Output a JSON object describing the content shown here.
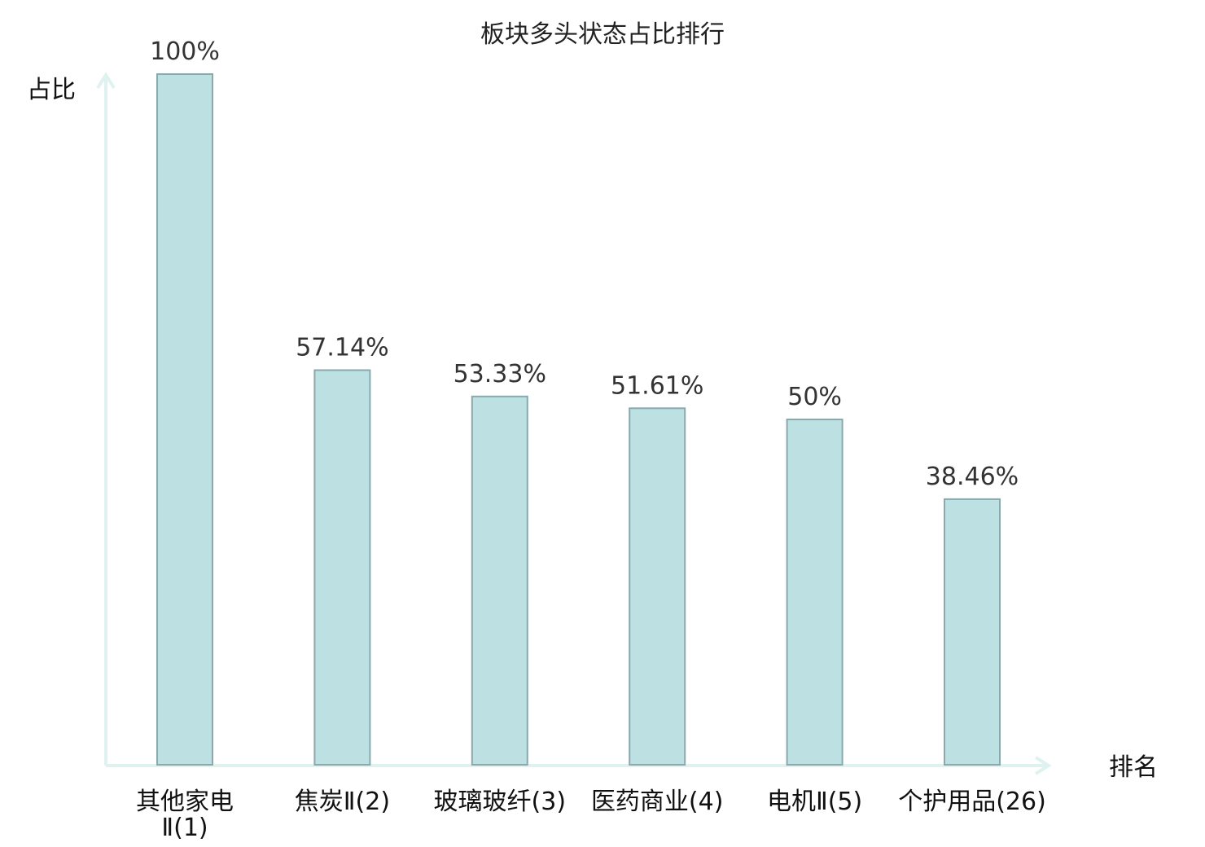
{
  "chart_data": {
    "type": "bar",
    "title": "板块多头状态占比排行",
    "xlabel": "排名",
    "ylabel": "占比",
    "ylim": [
      0,
      100
    ],
    "grid": false,
    "categories": [
      [
        "其他家电",
        "Ⅱ(1)"
      ],
      [
        "焦炭Ⅱ(2)"
      ],
      [
        "玻璃玻纤(3)"
      ],
      [
        "医药商业(4)"
      ],
      [
        "电机Ⅱ(5)"
      ],
      [
        "个护用品(26)"
      ]
    ],
    "values": [
      100,
      57.14,
      53.33,
      51.61,
      50,
      38.46
    ],
    "value_labels": [
      "100%",
      "57.14%",
      "53.33%",
      "51.61%",
      "50%",
      "38.46%"
    ],
    "highlight_index": 5
  },
  "colors": {
    "bar_fill": "#bde0e3",
    "bar_stroke": "#8aa9ad",
    "axis": "#dff2ef",
    "label_text": "#333333",
    "category_text": "#111111",
    "highlight_text": "#e0141e"
  }
}
